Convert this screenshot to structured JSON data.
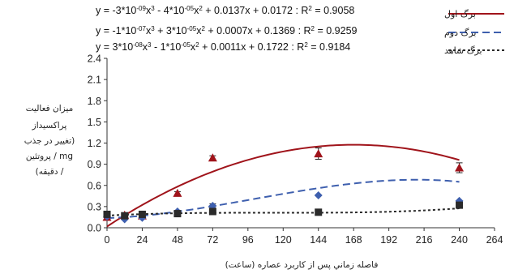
{
  "chart_data": {
    "type": "scatter",
    "xlabel": "فاصله زماني پس از كاربرد عصاره (ساعت)",
    "ylabel_lines": [
      "ميزان فعاليت",
      "پراكسيداز",
      "(تغيير در جذب",
      "mg / پروتئين",
      "/ دقيقه)"
    ],
    "xlim": [
      0,
      264
    ],
    "ylim": [
      0,
      2.4
    ],
    "xticks": [
      "0",
      "24",
      "48",
      "72",
      "96",
      "120",
      "144",
      "168",
      "192",
      "216",
      "240",
      "264"
    ],
    "yticks": [
      "0.0",
      "0.3",
      "0.6",
      "0.9",
      "1.2",
      "1.5",
      "1.8",
      "2.1",
      "2.4"
    ],
    "grid": false,
    "legend_position": "top-right",
    "equations": [
      {
        "parts": [
          {
            "t": "y = -3*10"
          },
          {
            "t": "-09",
            "sup": true
          },
          {
            "t": "x"
          },
          {
            "t": "3",
            "sup": true
          },
          {
            "t": " - 4*10"
          },
          {
            "t": "-05",
            "sup": true
          },
          {
            "t": "x"
          },
          {
            "t": "2",
            "sup": true
          },
          {
            "t": " + 0.0137x + 0.0172 : R"
          },
          {
            "t": "2",
            "sup": true
          },
          {
            "t": " = 0.9058"
          }
        ]
      },
      {
        "parts": [
          {
            "t": "y = -1*10"
          },
          {
            "t": "-07",
            "sup": true
          },
          {
            "t": "x"
          },
          {
            "t": "3",
            "sup": true
          },
          {
            "t": " + 3*10"
          },
          {
            "t": "-05",
            "sup": true
          },
          {
            "t": "x"
          },
          {
            "t": "2",
            "sup": true
          },
          {
            "t": " + 0.0007x + 0.1369 : R"
          },
          {
            "t": "2",
            "sup": true
          },
          {
            "t": " = 0.9259"
          }
        ]
      },
      {
        "parts": [
          {
            "t": "y = 3*10"
          },
          {
            "t": "-08",
            "sup": true
          },
          {
            "t": "x"
          },
          {
            "t": "3",
            "sup": true
          },
          {
            "t": " - 1*10"
          },
          {
            "t": "-05",
            "sup": true
          },
          {
            "t": "x"
          },
          {
            "t": "2",
            "sup": true
          },
          {
            "t": " + 0.0011x + 0.1722 : R"
          },
          {
            "t": "2",
            "sup": true
          },
          {
            "t": " = 0.9184"
          }
        ]
      }
    ],
    "series": [
      {
        "name": "برگ اول",
        "color": "#a0141b",
        "line_style": "solid",
        "marker": "triangle",
        "x": [
          0,
          12,
          24,
          48,
          72,
          144,
          240
        ],
        "y": [
          0.15,
          0.18,
          0.17,
          0.49,
          0.99,
          1.05,
          0.85
        ],
        "error": [
          0.0,
          0.0,
          0.0,
          0.02,
          0.03,
          0.08,
          0.07
        ],
        "fit": [
          0.0172,
          0.0137,
          -4e-05,
          -3e-09
        ]
      },
      {
        "name": "برگ دوم",
        "color": "#3e5fae",
        "line_style": "dashed",
        "marker": "diamond",
        "x": [
          0,
          12,
          24,
          48,
          72,
          144,
          240
        ],
        "y": [
          0.16,
          0.12,
          0.14,
          0.23,
          0.31,
          0.46,
          0.38
        ],
        "error": [
          0.0,
          0.0,
          0.0,
          0.0,
          0.03,
          0.0,
          0.0
        ],
        "fit": [
          0.1369,
          0.0007,
          3e-05,
          -1e-07
        ]
      },
      {
        "name": "برگ شاهد",
        "color": "#2a2a2a",
        "line_style": "dotted",
        "marker": "square",
        "x": [
          0,
          12,
          24,
          48,
          72,
          144,
          240
        ],
        "y": [
          0.19,
          0.17,
          0.19,
          0.2,
          0.23,
          0.22,
          0.32
        ],
        "error": [
          0.0,
          0.0,
          0.0,
          0.0,
          0.0,
          0.0,
          0.0
        ],
        "fit": [
          0.1722,
          0.0011,
          -1e-05,
          3e-08
        ]
      }
    ]
  }
}
